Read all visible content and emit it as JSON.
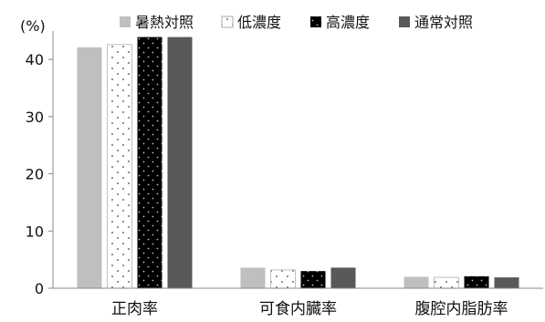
{
  "chart_data": {
    "type": "bar",
    "ylabel": "(%)",
    "ylim": [
      0,
      44
    ],
    "yticks": [
      0,
      10,
      20,
      30,
      40
    ],
    "grid": false,
    "legend_position": "top",
    "categories": [
      "正肉率",
      "可食内臓率",
      "腹腔内脂肪率"
    ],
    "series": [
      {
        "name": "暑熱対照",
        "pattern": "solid-light-gray",
        "color": "#bfbfbf",
        "values": [
          42.1,
          3.6,
          2.0
        ]
      },
      {
        "name": "低濃度",
        "pattern": "white-sparse-dots",
        "color": "#ffffff",
        "values": [
          42.6,
          3.2,
          1.9
        ]
      },
      {
        "name": "高濃度",
        "pattern": "black-dots",
        "color": "#000000",
        "values": [
          43.9,
          3.0,
          2.1
        ]
      },
      {
        "name": "通常対照",
        "pattern": "solid-dark-gray",
        "color": "#595959",
        "values": [
          43.9,
          3.6,
          1.9
        ]
      }
    ]
  }
}
